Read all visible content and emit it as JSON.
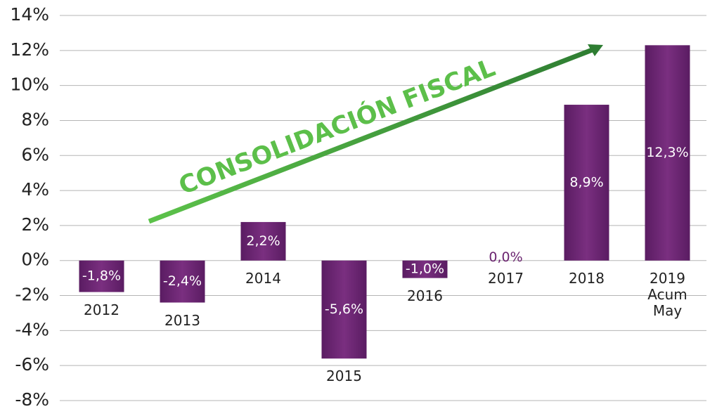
{
  "chart_data": {
    "type": "bar",
    "annotation": "CONSOLIDACIÓN FISCAL",
    "categories": [
      "2012",
      "2013",
      "2014",
      "2015",
      "2016",
      "2017",
      "2018",
      "2019 Acum May"
    ],
    "values": [
      -1.8,
      -2.4,
      2.2,
      -5.6,
      -1.0,
      0.0,
      8.9,
      12.3
    ],
    "value_labels": [
      "-1,8%",
      "-2,4%",
      "2,2%",
      "-5,6%",
      "-1,0%",
      "0,0%",
      "8,9%",
      "12,3%"
    ],
    "color": "#6b2470",
    "ylim": [
      -8,
      14
    ],
    "yticks": [
      {
        "value": -8,
        "label": "-8%"
      },
      {
        "value": -6,
        "label": "-6%"
      },
      {
        "value": -4,
        "label": "-4%"
      },
      {
        "value": -2,
        "label": "-2%"
      },
      {
        "value": 0,
        "label": "0%"
      },
      {
        "value": 2,
        "label": "2%"
      },
      {
        "value": 4,
        "label": "4%"
      },
      {
        "value": 6,
        "label": "6%"
      },
      {
        "value": 8,
        "label": "8%"
      },
      {
        "value": 10,
        "label": "10%"
      },
      {
        "value": 12,
        "label": "12%"
      },
      {
        "value": 14,
        "label": "14%"
      }
    ],
    "grid": true
  }
}
